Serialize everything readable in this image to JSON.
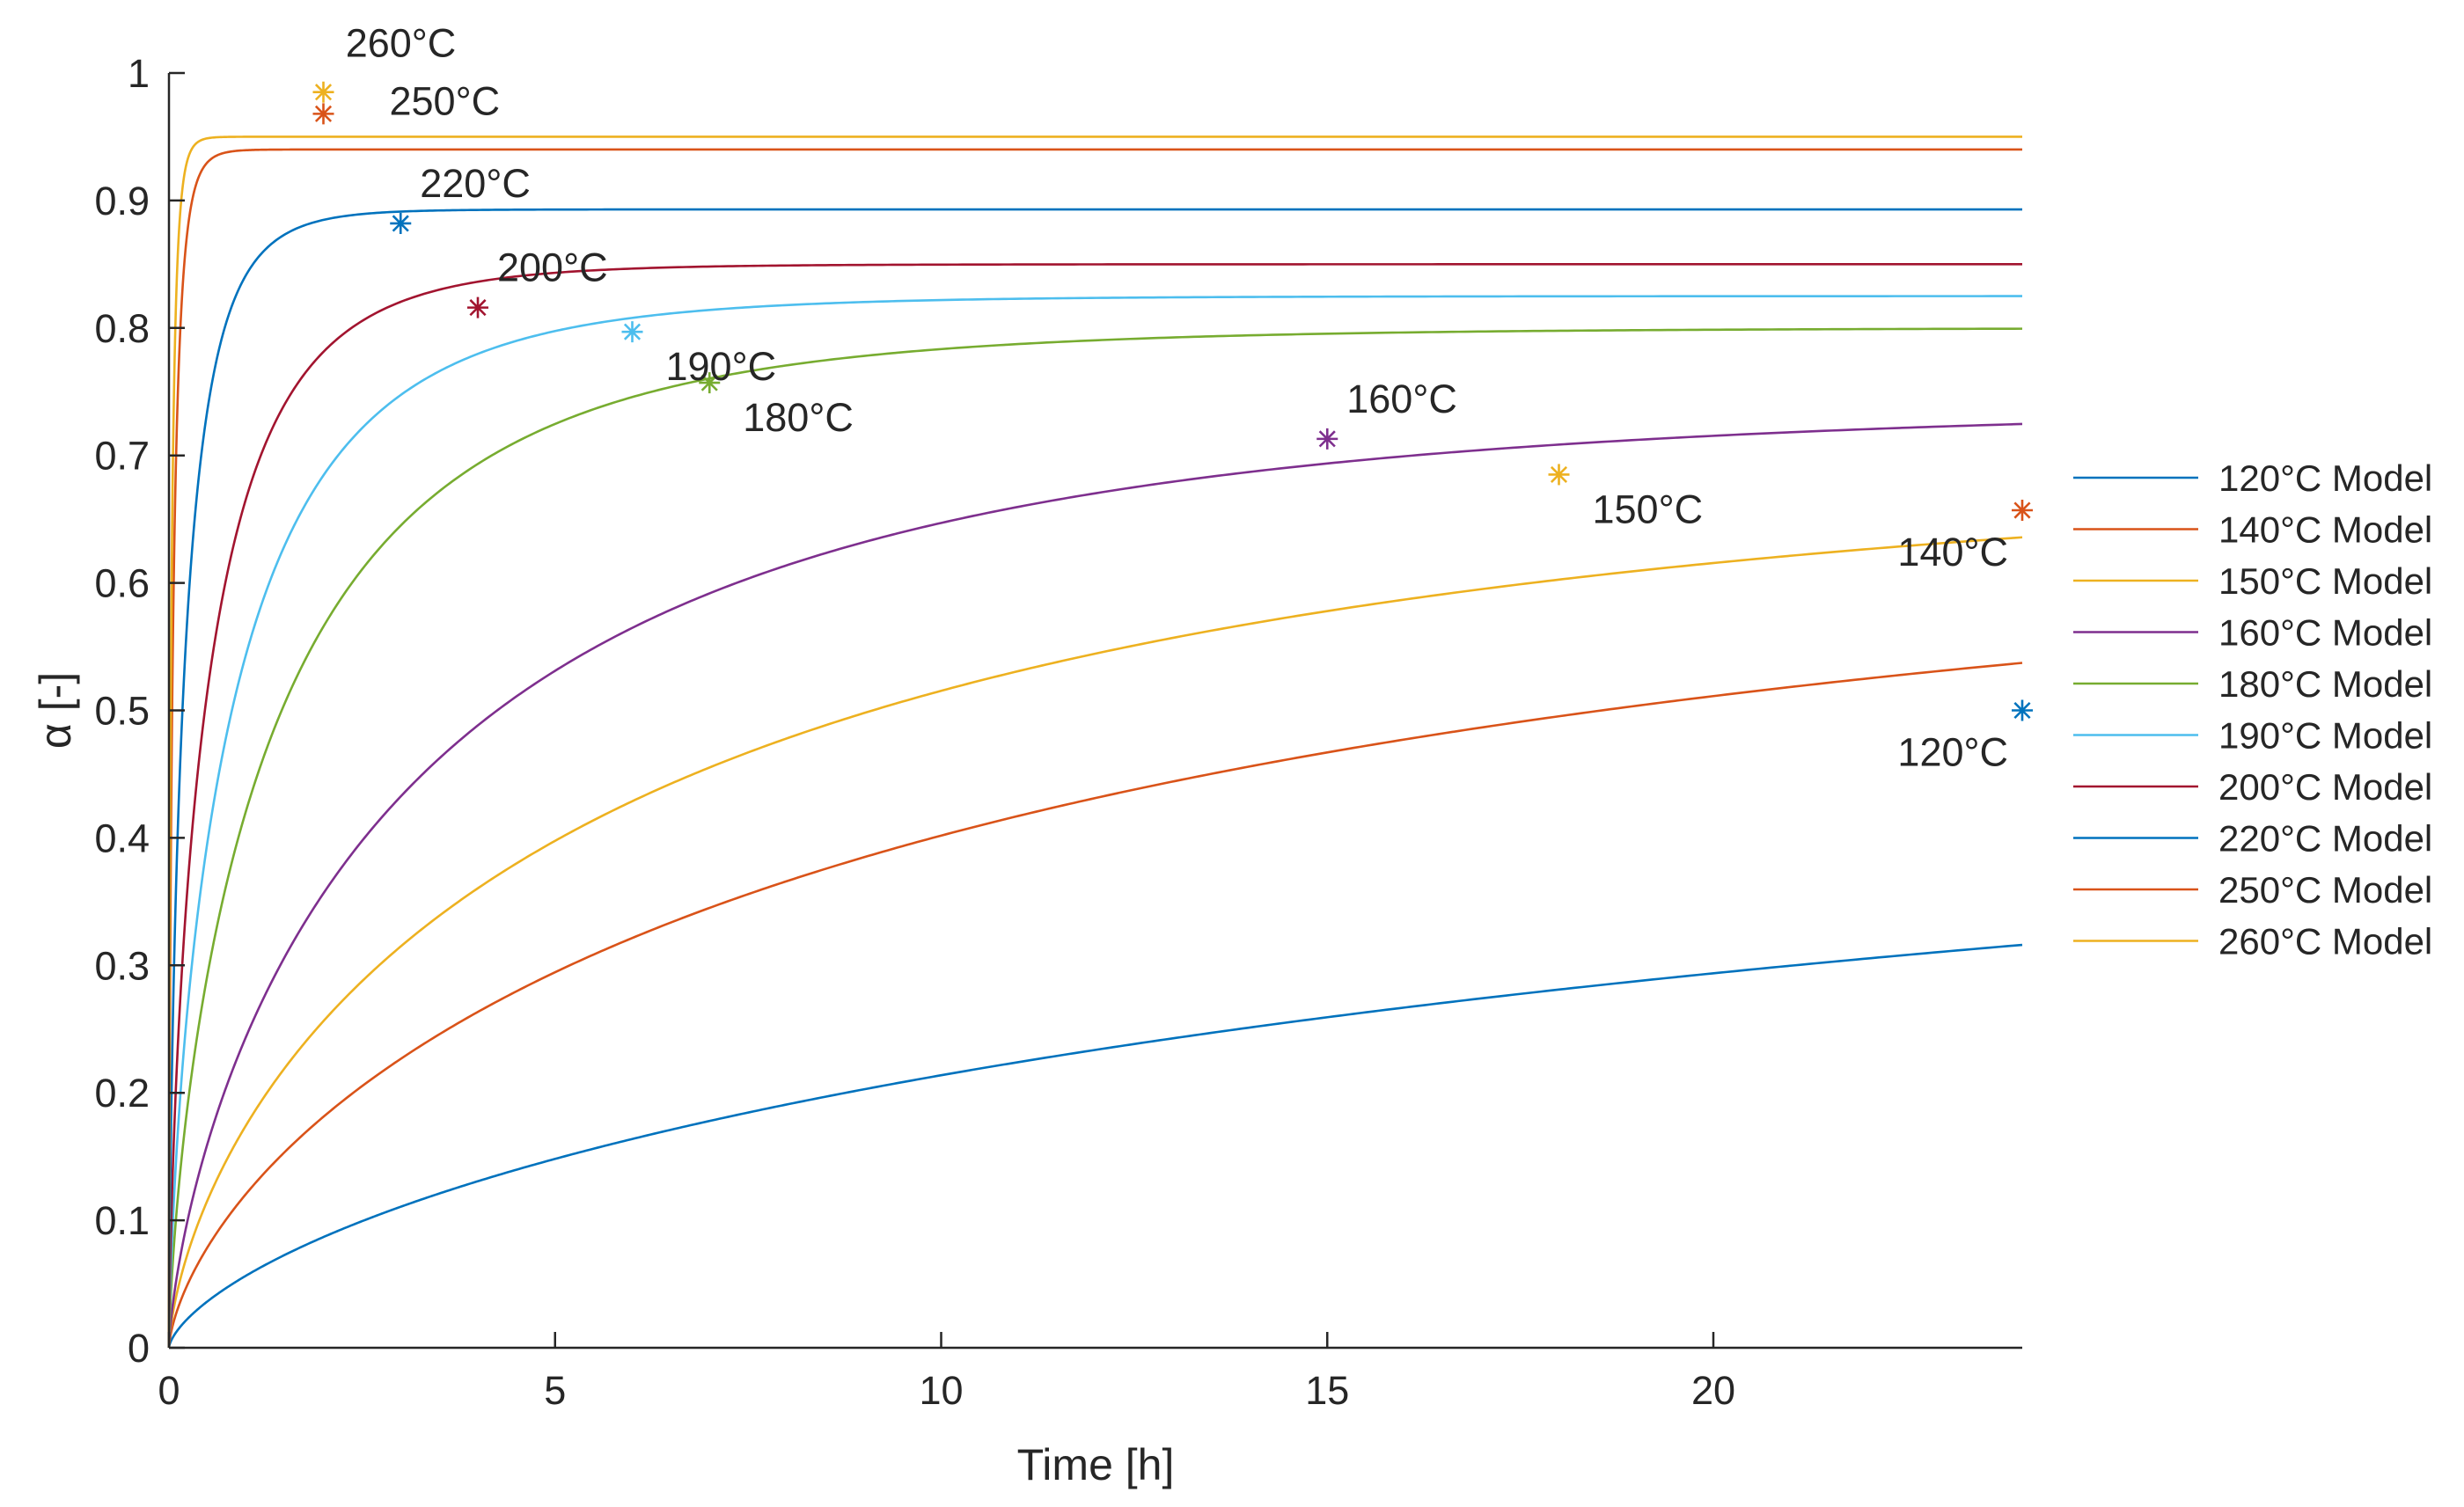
{
  "chart_data": {
    "type": "line",
    "title": "",
    "xlabel": "Time [h]",
    "ylabel": "α [-]",
    "xlim": [
      0,
      24
    ],
    "ylim": [
      0,
      1
    ],
    "x_ticks": [
      0,
      5,
      10,
      15,
      20
    ],
    "y_ticks": [
      0,
      0.1,
      0.2,
      0.3,
      0.4,
      0.5,
      0.6,
      0.7,
      0.8,
      0.9,
      1
    ],
    "x_tick_labels": [
      "0",
      "5",
      "10",
      "15",
      "20"
    ],
    "y_tick_labels": [
      "0",
      "0.1",
      "0.2",
      "0.3",
      "0.4",
      "0.5",
      "0.6",
      "0.7",
      "0.8",
      "0.9",
      "1"
    ],
    "grid": false,
    "legend_position": "right",
    "series": [
      {
        "name": "120°C Model",
        "color": "#0072BD",
        "alpha_max": 0.5,
        "tau": 24.0,
        "n": 1.5
      },
      {
        "name": "140°C Model",
        "color": "#D95319",
        "alpha_max": 0.66,
        "tau": 11.0,
        "n": 1.5
      },
      {
        "name": "150°C Model",
        "color": "#EDB120",
        "alpha_max": 0.7,
        "tau": 6.5,
        "n": 1.5
      },
      {
        "name": "160°C Model",
        "color": "#7E2F8E",
        "alpha_max": 0.74,
        "tau": 3.6,
        "n": 1.4
      },
      {
        "name": "180°C Model",
        "color": "#77AC30",
        "alpha_max": 0.8,
        "tau": 1.5,
        "n": 1.4
      },
      {
        "name": "190°C Model",
        "color": "#4DBEEE",
        "alpha_max": 0.825,
        "tau": 0.9,
        "n": 1.4
      },
      {
        "name": "200°C Model",
        "color": "#A2142F",
        "alpha_max": 0.85,
        "tau": 0.55,
        "n": 1.4
      },
      {
        "name": "220°C Model",
        "color": "#0072BD",
        "alpha_max": 0.893,
        "tau": 0.23,
        "n": 1.4
      },
      {
        "name": "250°C Model",
        "color": "#D95319",
        "alpha_max": 0.94,
        "tau": 0.06,
        "n": 1.4
      },
      {
        "name": "260°C Model",
        "color": "#EDB120",
        "alpha_max": 0.95,
        "tau": 0.035,
        "n": 1.4
      }
    ],
    "experimental_points": [
      {
        "label": "120°C",
        "x": 24,
        "y": 0.5,
        "color": "#0072BD",
        "label_side": "below-left"
      },
      {
        "label": "140°C",
        "x": 24,
        "y": 0.657,
        "color": "#D95319",
        "label_side": "below-left"
      },
      {
        "label": "150°C",
        "x": 18,
        "y": 0.685,
        "color": "#EDB120",
        "label_side": "below-right"
      },
      {
        "label": "160°C",
        "x": 15,
        "y": 0.713,
        "color": "#7E2F8E",
        "label_side": "above-right"
      },
      {
        "label": "180°C",
        "x": 7,
        "y": 0.757,
        "color": "#77AC30",
        "label_side": "below-right"
      },
      {
        "label": "190°C",
        "x": 6,
        "y": 0.797,
        "color": "#4DBEEE",
        "label_side": "below-right"
      },
      {
        "label": "200°C",
        "x": 4,
        "y": 0.816,
        "color": "#A2142F",
        "label_side": "above-right"
      },
      {
        "label": "220°C",
        "x": 3,
        "y": 0.882,
        "color": "#0072BD",
        "label_side": "above-right"
      },
      {
        "label": "250°C",
        "x": 2,
        "y": 0.968,
        "color": "#D95319",
        "label_side": "right"
      },
      {
        "label": "260°C",
        "x": 2,
        "y": 0.985,
        "color": "#EDB120",
        "label_side": "above"
      }
    ]
  }
}
